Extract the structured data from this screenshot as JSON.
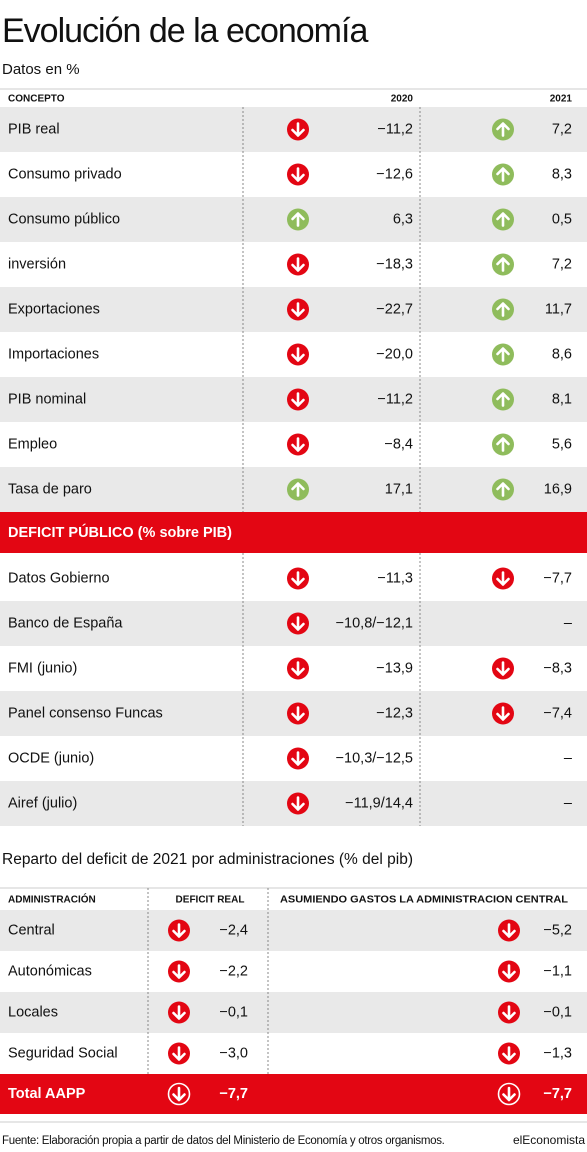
{
  "header": {
    "title": "Evolución de la economía",
    "subtitle": "Datos en %"
  },
  "table": {
    "columns": [
      "CONCEPTO",
      "2020",
      "2021"
    ],
    "rows": [
      [
        "PIB real",
        "−11,2",
        "7,2"
      ],
      [
        "Consumo privado",
        "−12,6",
        "8,3"
      ],
      [
        "Consumo público",
        "6,3",
        "0,5"
      ],
      [
        "inversión",
        "−18,3",
        "7,2"
      ],
      [
        "Exportaciones",
        "−22,7",
        "11,7"
      ],
      [
        "Importaciones",
        "−20,0",
        "8,6"
      ],
      [
        "PIB nominal",
        "−11,2",
        "8,1"
      ],
      [
        "Empleo",
        "−8,4",
        "5,6"
      ],
      [
        "Tasa de paro",
        "17,1",
        "16,9"
      ]
    ],
    "section": "DEFICIT PÚBLICO (% sobre PIB)",
    "section_rows": [
      [
        "Datos Gobierno",
        "−11,3",
        "−7,7"
      ],
      [
        "Banco de España",
        "−10,8/−12,1",
        "–"
      ],
      [
        "FMI (junio)",
        "−13,9",
        "−8,3"
      ],
      [
        "Panel consenso Funcas",
        "−12,3",
        "−7,4"
      ],
      [
        "OCDE (junio)",
        "−10,3/−12,5",
        "–"
      ],
      [
        "Airef (julio)",
        "−11,9/14,4",
        "–"
      ]
    ]
  },
  "table2": {
    "title": "Reparto del deficit de 2021 por administraciones (% del pib)",
    "columns": [
      "ADMINISTRACIÓN",
      "DEFICIT REAL",
      "ASUMIENDO GASTOS LA ADMINISTRACION CENTRAL"
    ],
    "rows": [
      [
        "Central",
        "−2,4",
        "−5,2"
      ],
      [
        "Autonómicas",
        "−2,2",
        "−1,1"
      ],
      [
        "Locales",
        "−0,1",
        "−0,1"
      ],
      [
        "Seguridad Social",
        "−3,0",
        "−1,3"
      ]
    ],
    "total": [
      "Total AAPP",
      "−7,7",
      "−7,7"
    ]
  },
  "footer": {
    "source": "Fuente: Elaboración propia a partir de datos del Ministerio de Economía y otros organismos.",
    "brand": "elEconomista"
  }
}
